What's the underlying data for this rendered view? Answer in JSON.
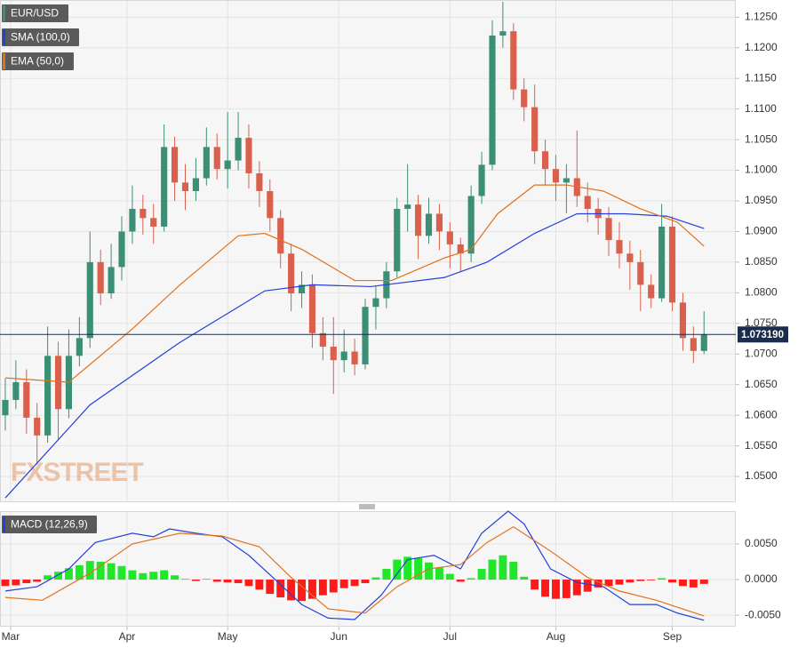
{
  "chart_data": [
    {
      "type": "candlestick",
      "name": "EUR/USD",
      "watermark": "FXSTREET",
      "up_color": "#3a8f74",
      "down_color": "#d9604c",
      "legend_color": "#3a8f74",
      "x": [
        0,
        2,
        4,
        6,
        8,
        10,
        12,
        14,
        16,
        18,
        20,
        22,
        24,
        26,
        28,
        30,
        32,
        34,
        36,
        38,
        40,
        42,
        44,
        46,
        48,
        50,
        52,
        54,
        56,
        58,
        60,
        62,
        64,
        66,
        68,
        70,
        72,
        74,
        76,
        78,
        80,
        82,
        84,
        86,
        88,
        90,
        92,
        94,
        96,
        98,
        100,
        102,
        104,
        106,
        108,
        110,
        112,
        114,
        116,
        118,
        120,
        122,
        124,
        126,
        128,
        130,
        132
      ],
      "open": [
        1.06,
        1.0625,
        1.0654,
        1.0596,
        1.0567,
        1.0697,
        1.061,
        1.0697,
        1.0726,
        1.085,
        1.0799,
        1.0842,
        1.09,
        1.0937,
        1.0922,
        1.0908,
        1.1038,
        1.098,
        1.0966,
        1.0987,
        1.1038,
        1.1002,
        1.1016,
        1.1053,
        1.0995,
        1.0966,
        1.0922,
        1.0864,
        1.0799,
        1.0813,
        1.0734,
        1.0712,
        1.069,
        1.0704,
        1.0683,
        1.0777,
        1.0791,
        1.0835,
        1.0937,
        1.0944,
        1.0893,
        1.0929,
        1.09,
        1.0879,
        1.0864,
        1.0958,
        1.1009,
        1.122,
        1.1227,
        1.1132,
        1.1103,
        1.1031,
        1.1002,
        1.098,
        1.0987,
        1.0958,
        1.0937,
        1.0922,
        1.0886,
        1.0864,
        1.085,
        1.0813,
        1.0791,
        1.0908,
        1.0784,
        1.0726,
        1.0705
      ],
      "high": [
        1.066,
        1.069,
        1.0675,
        1.062,
        1.0745,
        1.072,
        1.074,
        1.076,
        1.09,
        1.087,
        1.088,
        1.0925,
        1.0975,
        1.096,
        1.0945,
        1.1075,
        1.1055,
        1.101,
        1.102,
        1.107,
        1.106,
        1.1095,
        1.1095,
        1.1075,
        1.1015,
        1.0985,
        1.0935,
        1.088,
        1.0835,
        1.083,
        1.076,
        1.076,
        1.074,
        1.0725,
        1.079,
        1.081,
        1.085,
        1.0955,
        1.101,
        1.096,
        1.0955,
        1.0945,
        1.0915,
        1.089,
        1.0975,
        1.103,
        1.1245,
        1.1275,
        1.124,
        1.115,
        1.114,
        1.105,
        1.1025,
        1.101,
        1.1065,
        1.098,
        1.0955,
        1.094,
        1.0915,
        1.0885,
        1.087,
        1.083,
        1.0945,
        1.0925,
        1.08,
        1.0745,
        1.077
      ],
      "low": [
        1.0575,
        1.061,
        1.057,
        1.052,
        1.0555,
        1.056,
        1.0595,
        1.068,
        1.071,
        1.078,
        1.079,
        1.082,
        1.088,
        1.0895,
        1.088,
        1.09,
        1.095,
        1.0935,
        1.095,
        1.0975,
        1.0985,
        1.097,
        1.1,
        1.097,
        1.094,
        1.09,
        1.084,
        1.077,
        1.0775,
        1.071,
        1.069,
        1.0635,
        1.067,
        1.0665,
        1.0675,
        1.074,
        1.0775,
        1.0825,
        1.09,
        1.0855,
        1.088,
        1.087,
        1.084,
        1.0835,
        1.085,
        1.0945,
        1.1,
        1.12,
        1.1115,
        1.108,
        1.101,
        1.0975,
        1.095,
        1.093,
        1.094,
        1.0915,
        1.0895,
        1.086,
        1.084,
        1.0805,
        1.077,
        1.0775,
        1.0785,
        1.077,
        1.0705,
        1.0685,
        1.07
      ],
      "close": [
        1.0625,
        1.0654,
        1.0596,
        1.0567,
        1.0697,
        1.061,
        1.0697,
        1.0726,
        1.085,
        1.0799,
        1.0842,
        1.09,
        1.0937,
        1.0922,
        1.0908,
        1.1038,
        1.098,
        1.0966,
        1.0987,
        1.1038,
        1.1002,
        1.1016,
        1.1053,
        1.0995,
        1.0966,
        1.0922,
        1.0864,
        1.0799,
        1.0813,
        1.0734,
        1.0712,
        1.069,
        1.0704,
        1.0683,
        1.0777,
        1.0791,
        1.0835,
        1.0937,
        1.0944,
        1.0893,
        1.0929,
        1.09,
        1.0879,
        1.0864,
        1.0958,
        1.1009,
        1.122,
        1.1227,
        1.1132,
        1.1103,
        1.1031,
        1.1002,
        1.098,
        1.0987,
        1.0958,
        1.0937,
        1.0922,
        1.0886,
        1.0864,
        1.085,
        1.0813,
        1.0791,
        1.0908,
        1.0784,
        1.0726,
        1.0705,
        1.0732
      ],
      "series": [
        {
          "name": "SMA (100,0)",
          "color": "#2440d8",
          "x": [
            0,
            16,
            33,
            49,
            58,
            69,
            83,
            91,
            100,
            108,
            117,
            125,
            132
          ],
          "values": [
            1.0465,
            1.0617,
            1.0719,
            1.0803,
            1.0813,
            1.081,
            1.0825,
            1.085,
            1.0897,
            1.0929,
            1.0929,
            1.0925,
            1.0905
          ]
        },
        {
          "name": "EMA (50,0)",
          "color": "#e2711d",
          "x": [
            0,
            12,
            24,
            33,
            44,
            49,
            56,
            66,
            73,
            83,
            88,
            93,
            100,
            106,
            113,
            120,
            127,
            132
          ],
          "values": [
            1.0661,
            1.0654,
            1.0741,
            1.0813,
            1.0893,
            1.0897,
            1.0871,
            1.082,
            1.082,
            1.0857,
            1.0871,
            1.0929,
            1.0976,
            1.0976,
            1.0966,
            1.0937,
            1.0915,
            1.0876
          ]
        }
      ],
      "current_price": {
        "value": 1.07319,
        "label": "1.073190"
      },
      "current_price_color": "#1c2c4c",
      "xlim": [
        -1,
        138
      ],
      "ylim": [
        1.0458,
        1.1278
      ],
      "yticks": [
        {
          "value": 1.05,
          "label": "1.0500"
        },
        {
          "value": 1.055,
          "label": "1.0550"
        },
        {
          "value": 1.06,
          "label": "1.0600"
        },
        {
          "value": 1.065,
          "label": "1.0650"
        },
        {
          "value": 1.07,
          "label": "1.0700"
        },
        {
          "value": 1.075,
          "label": "1.0750"
        },
        {
          "value": 1.08,
          "label": "1.0800"
        },
        {
          "value": 1.085,
          "label": "1.0850"
        },
        {
          "value": 1.09,
          "label": "1.0900"
        },
        {
          "value": 1.095,
          "label": "1.0950"
        },
        {
          "value": 1.1,
          "label": "1.1000"
        },
        {
          "value": 1.105,
          "label": "1.1050"
        },
        {
          "value": 1.11,
          "label": "1.1100"
        },
        {
          "value": 1.115,
          "label": "1.1150"
        },
        {
          "value": 1.12,
          "label": "1.1200"
        },
        {
          "value": 1.125,
          "label": "1.1250"
        }
      ],
      "grid": true
    },
    {
      "type": "macd",
      "name": "MACD (12,26,9)",
      "legend_color": "#2440d8",
      "x": [
        0,
        2,
        4,
        6,
        8,
        10,
        12,
        14,
        16,
        18,
        20,
        22,
        24,
        26,
        28,
        30,
        32,
        34,
        36,
        38,
        40,
        42,
        44,
        46,
        48,
        50,
        52,
        54,
        56,
        58,
        60,
        62,
        64,
        66,
        68,
        70,
        72,
        74,
        76,
        78,
        80,
        82,
        84,
        86,
        88,
        90,
        92,
        94,
        96,
        98,
        100,
        102,
        104,
        106,
        108,
        110,
        112,
        114,
        116,
        118,
        120,
        122,
        124,
        126,
        128,
        130,
        132
      ],
      "histogram": [
        -0.0009,
        -0.0008,
        -0.0005,
        -0.0003,
        0.0006,
        0.0011,
        0.0016,
        0.002,
        0.0026,
        0.0025,
        0.0023,
        0.0019,
        0.0013,
        0.0009,
        0.0011,
        0.0013,
        0.0006,
        0.0001,
        -0.0002,
        0.0001,
        -0.0003,
        -0.0004,
        -0.0005,
        -0.0009,
        -0.0014,
        -0.002,
        -0.0025,
        -0.0029,
        -0.003,
        -0.0027,
        -0.0022,
        -0.0018,
        -0.0012,
        -0.0009,
        -0.0005,
        0.0003,
        0.0015,
        0.0028,
        0.0032,
        0.003,
        0.0024,
        0.0017,
        0.0008,
        -0.0003,
        0.0002,
        0.0015,
        0.0028,
        0.0034,
        0.0025,
        0.0004,
        -0.0014,
        -0.0024,
        -0.0027,
        -0.0026,
        -0.0022,
        -0.0017,
        -0.0011,
        -0.0009,
        -0.0007,
        -0.0004,
        -0.0002,
        -0.0001,
        0.0002,
        -0.0004,
        -0.0009,
        -0.0011,
        -0.0006
      ],
      "up_color": "#22e62a",
      "down_color": "#ff1a1a",
      "series": [
        {
          "color": "#2440d8",
          "x": [
            0,
            6,
            12,
            17,
            24,
            28,
            31,
            36,
            41,
            46,
            51,
            56,
            61,
            66,
            71,
            76,
            81,
            86,
            90,
            95,
            98,
            103,
            108,
            113,
            118,
            123,
            127,
            132
          ],
          "values": [
            -0.0016,
            -0.001,
            0.0015,
            0.0052,
            0.0065,
            0.006,
            0.0071,
            0.0065,
            0.006,
            0.0034,
            0.0,
            -0.0035,
            -0.0054,
            -0.0056,
            -0.0022,
            0.0028,
            0.0034,
            0.0015,
            0.0065,
            0.0096,
            0.0078,
            0.0015,
            -0.0004,
            -0.001,
            -0.0035,
            -0.0035,
            -0.0047,
            -0.0057
          ]
        },
        {
          "color": "#e2711d",
          "x": [
            0,
            7,
            16,
            24,
            33,
            41,
            48,
            54,
            61,
            68,
            74,
            80,
            86,
            91,
            96,
            103,
            110,
            116,
            123,
            132
          ],
          "values": [
            -0.0025,
            -0.0029,
            0.0009,
            0.005,
            0.0065,
            0.0061,
            0.0046,
            0.0003,
            -0.0041,
            -0.0047,
            -0.001,
            0.0015,
            0.0021,
            0.0052,
            0.0074,
            0.004,
            0.0003,
            -0.0016,
            -0.0029,
            -0.0051
          ]
        }
      ],
      "xlim": [
        -1,
        138
      ],
      "ylim": [
        -0.0066,
        0.0096
      ],
      "yticks": [
        {
          "value": 0.005,
          "label": "0.0050"
        },
        {
          "value": 0,
          "label": "0.0000"
        },
        {
          "value": -0.005,
          "label": "-0.0050"
        }
      ],
      "xticks": [
        {
          "value": 1,
          "label": "Mar"
        },
        {
          "value": 23,
          "label": "Apr"
        },
        {
          "value": 42,
          "label": "May"
        },
        {
          "value": 63,
          "label": "Jun"
        },
        {
          "value": 84,
          "label": "Jul"
        },
        {
          "value": 104,
          "label": "Aug"
        },
        {
          "value": 126,
          "label": "Sep"
        }
      ],
      "grid": true
    }
  ]
}
